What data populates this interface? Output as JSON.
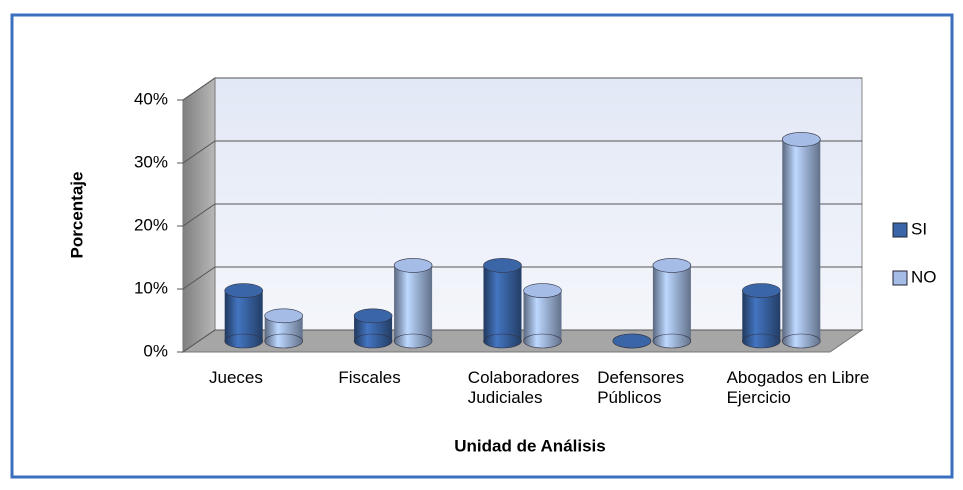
{
  "chart_data": {
    "type": "bar3d",
    "xlabel": "Unidad de Análisis",
    "ylabel": "Porcentaje",
    "categories": [
      "Jueces",
      "Fiscales",
      "Colaboradores Judiciales",
      "Defensores Públicos",
      "Abogados en Libre Ejercicio"
    ],
    "series": [
      {
        "name": "SI",
        "color": "#3a66a8",
        "values": [
          8,
          4,
          12,
          0,
          8
        ]
      },
      {
        "name": "NO",
        "color": "#a4bce6",
        "values": [
          4,
          12,
          8,
          12,
          32
        ]
      }
    ],
    "ylim": [
      0,
      40
    ],
    "yticks": [
      {
        "value": 0,
        "label": "0%"
      },
      {
        "value": 10,
        "label": "10%"
      },
      {
        "value": 20,
        "label": "20%"
      },
      {
        "value": 30,
        "label": "30%"
      },
      {
        "value": 40,
        "label": "40%"
      }
    ],
    "grid": true,
    "legend": "right"
  }
}
